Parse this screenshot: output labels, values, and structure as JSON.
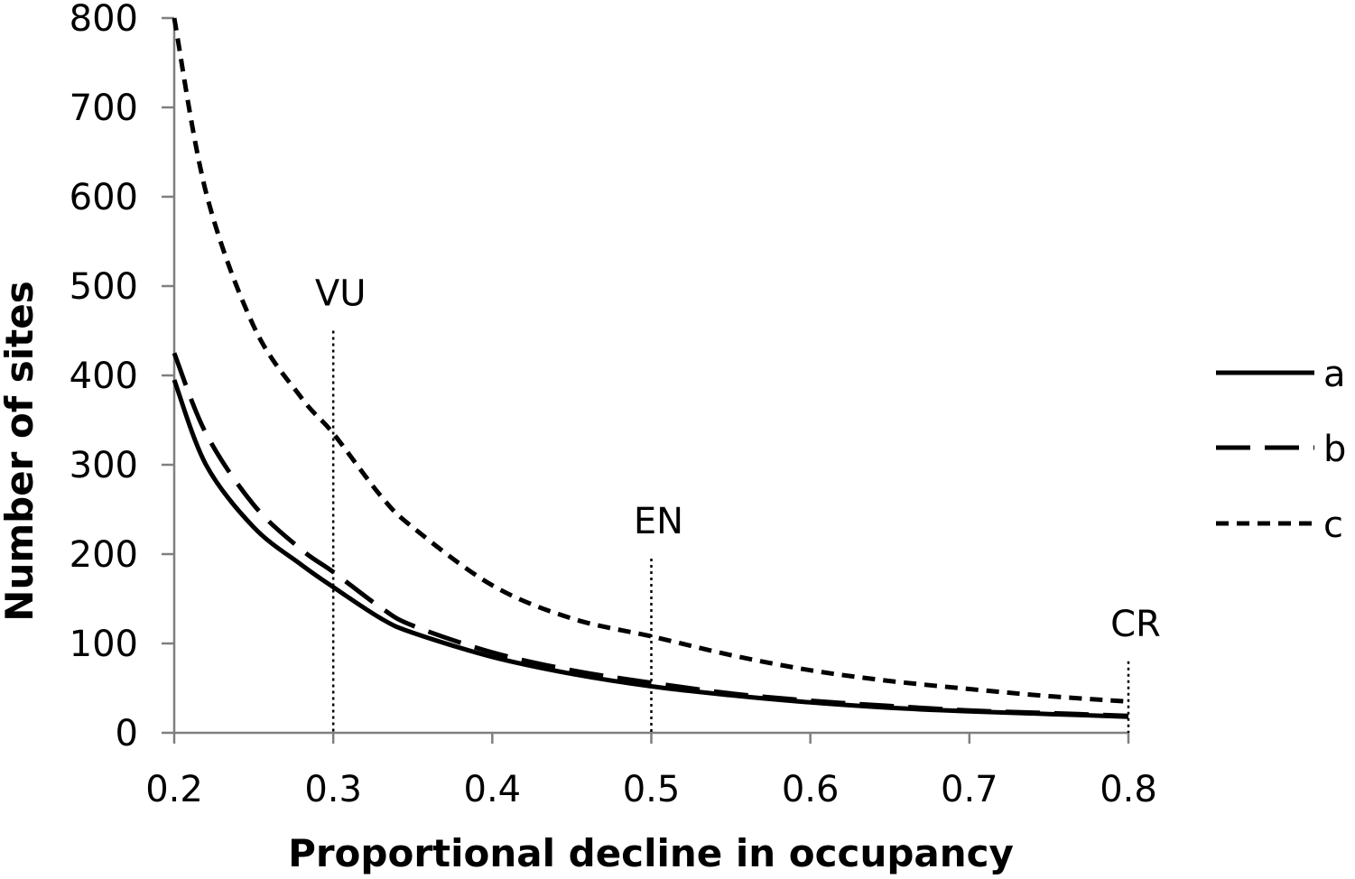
{
  "chart_data": {
    "type": "line",
    "xlabel": "Proportional decline in occupancy",
    "ylabel": "Number of sites",
    "xlim": [
      0.2,
      0.8
    ],
    "ylim": [
      0,
      800
    ],
    "x_ticks": [
      "0.2",
      "0.3",
      "0.4",
      "0.5",
      "0.6",
      "0.7",
      "0.8"
    ],
    "x_tick_values": [
      0.2,
      0.3,
      0.4,
      0.5,
      0.6,
      0.7,
      0.8
    ],
    "y_ticks": [
      "0",
      "100",
      "200",
      "300",
      "400",
      "500",
      "600",
      "700",
      "800"
    ],
    "y_tick_values": [
      0,
      100,
      200,
      300,
      400,
      500,
      600,
      700,
      800
    ],
    "grid": false,
    "legend_position": "right",
    "x": [
      0.2,
      0.22,
      0.25,
      0.28,
      0.3,
      0.33,
      0.35,
      0.4,
      0.45,
      0.5,
      0.55,
      0.6,
      0.65,
      0.7,
      0.75,
      0.8
    ],
    "series": [
      {
        "name": "a",
        "style": "solid",
        "values": [
          395,
          300,
          230,
          188,
          163,
          128,
          112,
          85,
          66,
          52,
          42,
          34,
          28,
          24,
          21,
          18
        ]
      },
      {
        "name": "b",
        "style": "long-dash",
        "values": [
          425,
          335,
          255,
          205,
          180,
          140,
          120,
          90,
          70,
          56,
          44,
          36,
          30,
          25,
          22,
          19
        ]
      },
      {
        "name": "c",
        "style": "short-dash",
        "values": [
          800,
          605,
          455,
          375,
          335,
          265,
          230,
          165,
          128,
          108,
          87,
          70,
          58,
          49,
          41,
          35
        ]
      }
    ],
    "annotations": [
      {
        "text": "VU",
        "x": 0.3,
        "line_top": 450
      },
      {
        "text": "EN",
        "x": 0.5,
        "line_top": 195
      },
      {
        "text": "CR",
        "x": 0.8,
        "line_top": 80
      }
    ]
  }
}
